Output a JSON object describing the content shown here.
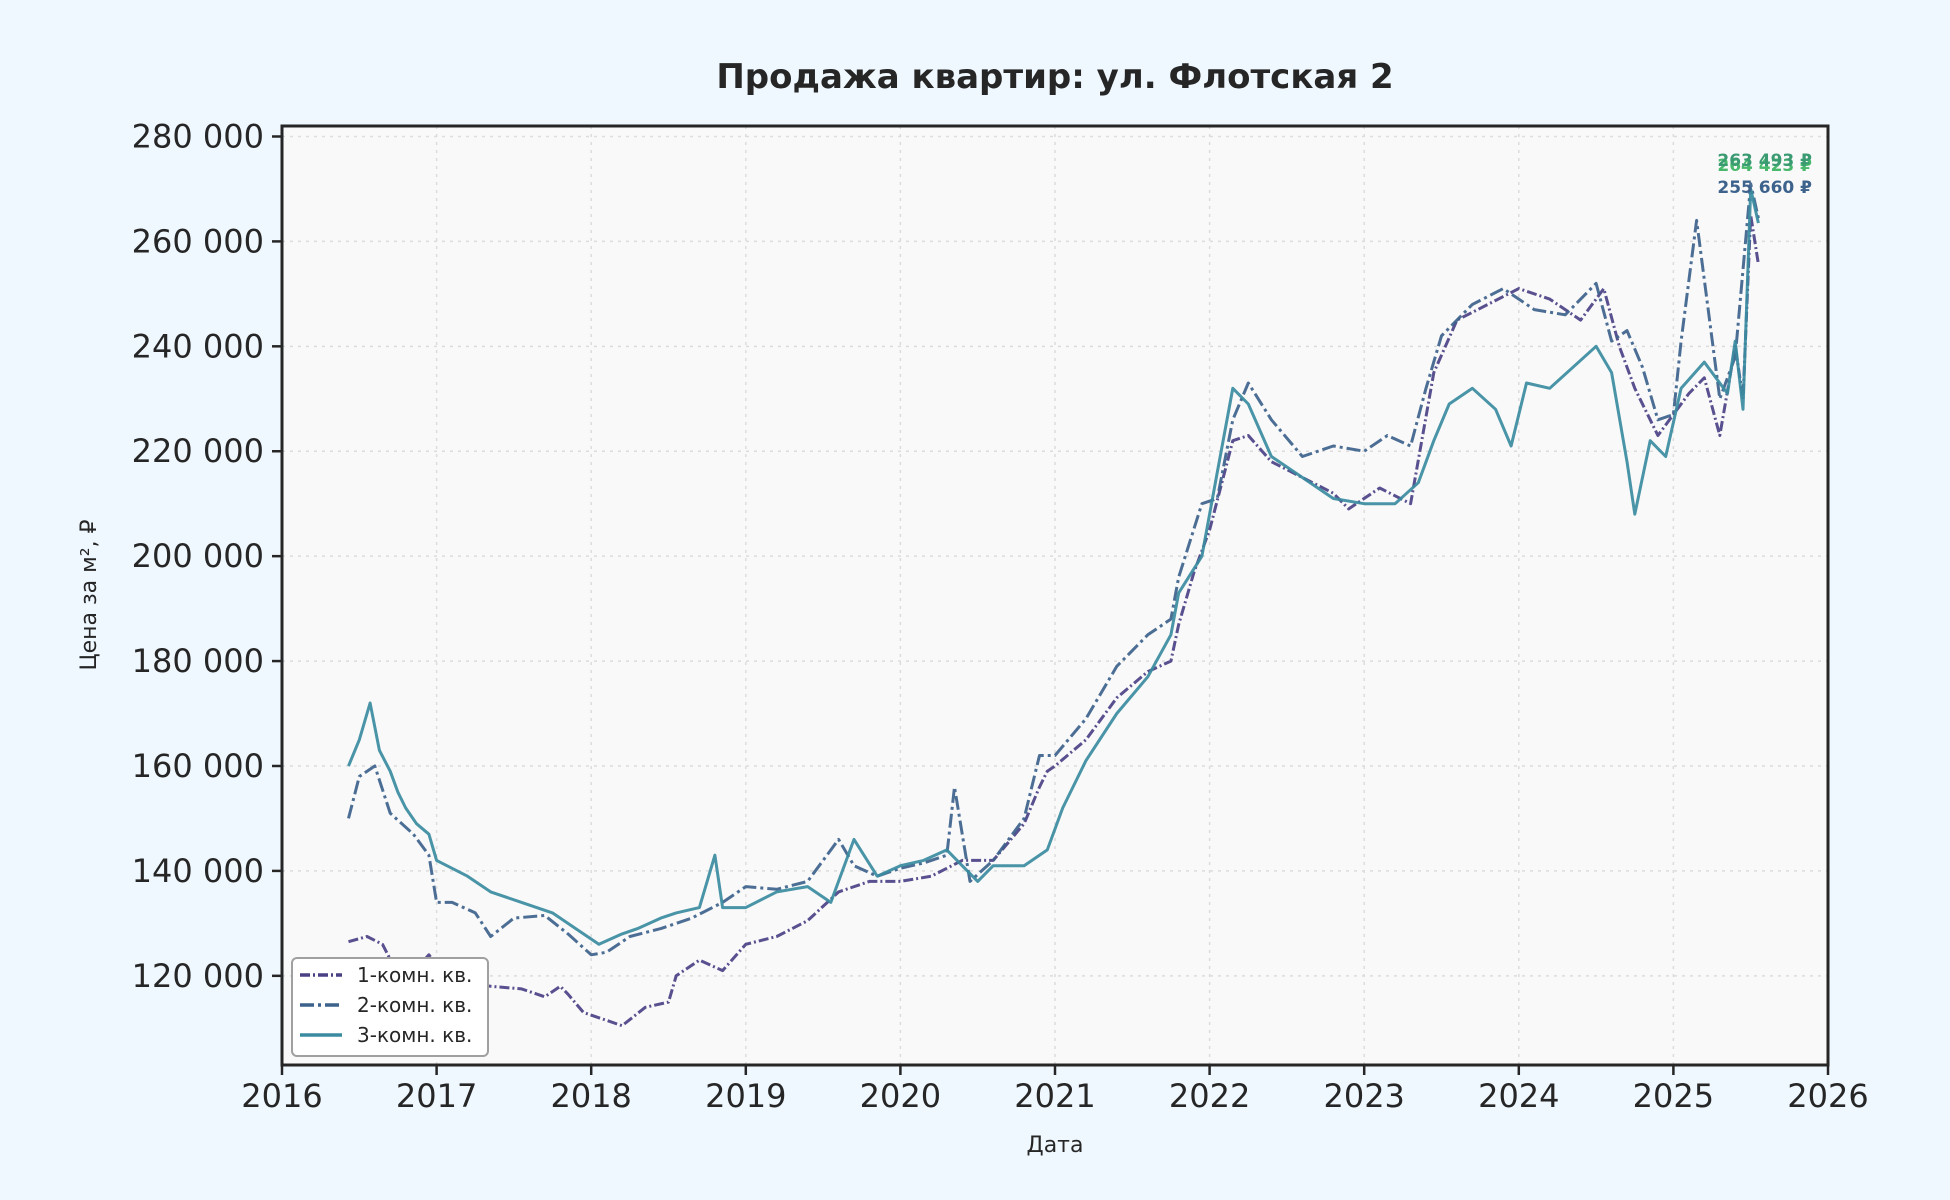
{
  "chart_data": {
    "type": "line",
    "title": "Продажа квартир: ул. Флотская 2",
    "xlabel": "Дата",
    "ylabel": "Цена за м², ₽",
    "xlim": [
      2016.0,
      2026.0
    ],
    "ylim": [
      103000,
      282000
    ],
    "x_ticks": [
      "2016",
      "2017",
      "2018",
      "2019",
      "2020",
      "2021",
      "2022",
      "2023",
      "2024",
      "2025",
      "2026"
    ],
    "y_ticks": [
      {
        "value": 120000,
        "label": "120 000"
      },
      {
        "value": 140000,
        "label": "140 000"
      },
      {
        "value": 160000,
        "label": "160 000"
      },
      {
        "value": 180000,
        "label": "180 000"
      },
      {
        "value": 200000,
        "label": "200 000"
      },
      {
        "value": 220000,
        "label": "220 000"
      },
      {
        "value": 240000,
        "label": "240 000"
      },
      {
        "value": 260000,
        "label": "260 000"
      },
      {
        "value": 280000,
        "label": "280 000"
      }
    ],
    "grid": true,
    "legend_position": "bottom-left",
    "series": [
      {
        "name": "1-комн. кв.",
        "color": "#4a4185",
        "style": "dash",
        "end_label": "255 660 ₽",
        "x": [
          2016.43,
          2016.55,
          2016.65,
          2016.72,
          2016.8,
          2016.95,
          2017.05,
          2017.2,
          2017.35,
          2017.55,
          2017.7,
          2017.8,
          2017.85,
          2017.95,
          2018.1,
          2018.2,
          2018.35,
          2018.5,
          2018.55,
          2018.7,
          2018.85,
          2019.0,
          2019.2,
          2019.4,
          2019.6,
          2019.8,
          2020.0,
          2020.2,
          2020.4,
          2020.6,
          2020.8,
          2020.9,
          2020.95,
          2021.0,
          2021.2,
          2021.4,
          2021.6,
          2021.75,
          2021.8,
          2021.9,
          2022.0,
          2022.15,
          2022.25,
          2022.4,
          2022.6,
          2022.8,
          2022.9,
          2023.1,
          2023.3,
          2023.45,
          2023.6,
          2023.8,
          2024.0,
          2024.2,
          2024.4,
          2024.55,
          2024.65,
          2024.75,
          2024.9,
          2025.1,
          2025.2,
          2025.3,
          2025.4,
          2025.45,
          2025.5,
          2025.55
        ],
        "values": [
          126500,
          127500,
          126000,
          122000,
          119000,
          124000,
          120000,
          118500,
          118000,
          117500,
          116000,
          118000,
          116500,
          113000,
          111500,
          110500,
          114000,
          115000,
          120000,
          123000,
          121000,
          126000,
          127500,
          130500,
          136000,
          138000,
          138000,
          139000,
          142000,
          142000,
          149000,
          156000,
          159000,
          160000,
          165000,
          173000,
          178000,
          180000,
          187000,
          197000,
          205000,
          222000,
          223000,
          218000,
          215000,
          212000,
          209000,
          213000,
          210000,
          235000,
          245000,
          248000,
          251000,
          249000,
          245000,
          251000,
          240000,
          232000,
          223000,
          231000,
          234000,
          223000,
          240000,
          230000,
          265000,
          255660
        ]
      },
      {
        "name": "2-комн. кв.",
        "color": "#3d628c",
        "style": "dashdot",
        "end_label": "264 423 ₽",
        "x": [
          2016.43,
          2016.5,
          2016.6,
          2016.7,
          2016.85,
          2016.95,
          2017.0,
          2017.1,
          2017.25,
          2017.35,
          2017.5,
          2017.7,
          2017.85,
          2018.0,
          2018.1,
          2018.25,
          2018.45,
          2018.65,
          2018.85,
          2019.0,
          2019.2,
          2019.4,
          2019.6,
          2019.7,
          2019.85,
          2020.0,
          2020.15,
          2020.3,
          2020.35,
          2020.45,
          2020.6,
          2020.8,
          2020.9,
          2021.0,
          2021.2,
          2021.4,
          2021.6,
          2021.75,
          2021.8,
          2021.95,
          2022.05,
          2022.15,
          2022.25,
          2022.4,
          2022.6,
          2022.8,
          2023.0,
          2023.15,
          2023.3,
          2023.4,
          2023.5,
          2023.7,
          2023.9,
          2024.1,
          2024.3,
          2024.5,
          2024.6,
          2024.7,
          2024.8,
          2024.9,
          2025.0,
          2025.05,
          2025.15,
          2025.3,
          2025.4,
          2025.5,
          2025.55
        ],
        "values": [
          150000,
          158000,
          160000,
          151000,
          147000,
          143000,
          134000,
          134000,
          132000,
          127500,
          131000,
          131500,
          128000,
          124000,
          124500,
          127500,
          129000,
          131000,
          134000,
          137000,
          136500,
          138000,
          146000,
          141000,
          139000,
          140500,
          141500,
          143000,
          156000,
          138000,
          142000,
          150000,
          162000,
          162000,
          169000,
          179000,
          185000,
          188000,
          196000,
          210000,
          211000,
          226000,
          233000,
          226000,
          219000,
          221000,
          220000,
          223000,
          221000,
          232000,
          242000,
          248000,
          251000,
          247000,
          246000,
          252000,
          241000,
          243000,
          236000,
          226000,
          227000,
          241000,
          264000,
          230000,
          238000,
          271000,
          264423
        ]
      },
      {
        "name": "3-комн. кв.",
        "color": "#3a8ba0",
        "style": "solid",
        "end_label": "263 493 ₽",
        "x": [
          2016.43,
          2016.5,
          2016.57,
          2016.63,
          2016.7,
          2016.75,
          2016.8,
          2016.87,
          2016.95,
          2017.0,
          2017.2,
          2017.35,
          2017.55,
          2017.75,
          2017.9,
          2018.05,
          2018.2,
          2018.3,
          2018.45,
          2018.55,
          2018.7,
          2018.8,
          2018.85,
          2019.0,
          2019.2,
          2019.4,
          2019.55,
          2019.7,
          2019.85,
          2020.0,
          2020.15,
          2020.3,
          2020.4,
          2020.5,
          2020.6,
          2020.8,
          2020.95,
          2021.05,
          2021.2,
          2021.4,
          2021.6,
          2021.75,
          2021.8,
          2021.95,
          2022.05,
          2022.15,
          2022.25,
          2022.4,
          2022.6,
          2022.8,
          2023.0,
          2023.2,
          2023.35,
          2023.45,
          2023.55,
          2023.7,
          2023.85,
          2023.95,
          2024.05,
          2024.2,
          2024.35,
          2024.5,
          2024.6,
          2024.7,
          2024.75,
          2024.85,
          2024.95,
          2025.05,
          2025.2,
          2025.35,
          2025.4,
          2025.45,
          2025.5,
          2025.55
        ],
        "values": [
          160000,
          165000,
          172000,
          163000,
          159000,
          155000,
          152000,
          149000,
          147000,
          142000,
          139000,
          136000,
          134000,
          132000,
          129000,
          126000,
          128000,
          129000,
          131000,
          132000,
          133000,
          143000,
          133000,
          133000,
          136000,
          137000,
          134000,
          146000,
          139000,
          141000,
          142000,
          144000,
          141000,
          138000,
          141000,
          141000,
          144000,
          152000,
          161000,
          170000,
          177000,
          185000,
          193000,
          200000,
          216000,
          232000,
          229000,
          219000,
          215000,
          211000,
          210000,
          210000,
          214000,
          222000,
          229000,
          232000,
          228000,
          221000,
          233000,
          232000,
          236000,
          240000,
          235000,
          218000,
          208000,
          222000,
          219000,
          232000,
          237000,
          231000,
          241000,
          228000,
          270000,
          263493
        ]
      }
    ]
  }
}
